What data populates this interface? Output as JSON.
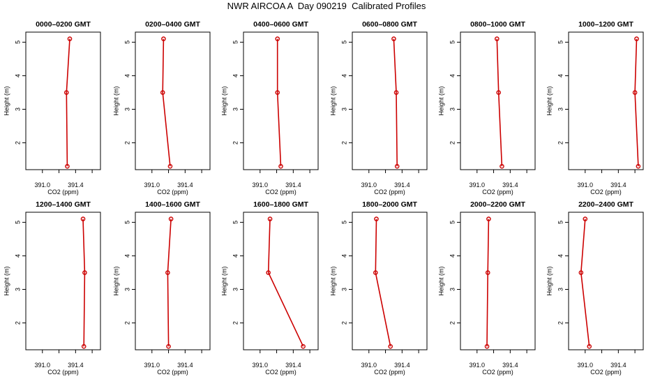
{
  "title": "NWR AIRCOA A  Day 090219  Calibrated Profiles",
  "colors": {
    "series": "#cc0000",
    "axis": "#000000",
    "background": "#ffffff"
  },
  "chart_data": {
    "type": "line",
    "xlabel": "CO2 (ppm)",
    "ylabel": "Height (m)",
    "xlim": [
      390.8,
      391.7
    ],
    "ylim": [
      1.2,
      5.3
    ],
    "xticks": [
      391.0,
      391.2,
      391.4,
      391.6
    ],
    "xtick_labels": [
      "391.0",
      "",
      "391.4",
      ""
    ],
    "yticks": [
      2,
      3,
      4,
      5
    ],
    "ytick_labels": [
      "2",
      "3",
      "4",
      "5"
    ],
    "grid": false,
    "legend": "none",
    "heights": [
      1.3,
      3.5,
      5.1
    ],
    "panels": [
      {
        "title": "0000–0200 GMT",
        "co2": [
          391.3,
          391.29,
          391.33
        ]
      },
      {
        "title": "0200–0400 GMT",
        "co2": [
          391.22,
          391.13,
          391.14
        ]
      },
      {
        "title": "0400–0600 GMT",
        "co2": [
          391.25,
          391.21,
          391.21
        ]
      },
      {
        "title": "0600–0800 GMT",
        "co2": [
          391.34,
          391.33,
          391.3
        ]
      },
      {
        "title": "0800–1000 GMT",
        "co2": [
          391.3,
          391.26,
          391.24
        ]
      },
      {
        "title": "1000–1200 GMT",
        "co2": [
          391.64,
          391.6,
          391.62
        ]
      },
      {
        "title": "1200–1400 GMT",
        "co2": [
          391.5,
          391.51,
          391.49
        ]
      },
      {
        "title": "1400–1600 GMT",
        "co2": [
          391.2,
          391.19,
          391.23
        ]
      },
      {
        "title": "1600–1800 GMT",
        "co2": [
          391.52,
          391.1,
          391.12
        ]
      },
      {
        "title": "1800–2000 GMT",
        "co2": [
          391.26,
          391.08,
          391.09
        ]
      },
      {
        "title": "2000–2200 GMT",
        "co2": [
          391.12,
          391.13,
          391.14
        ]
      },
      {
        "title": "2200–2400 GMT",
        "co2": [
          391.05,
          390.95,
          391.0
        ]
      }
    ]
  }
}
